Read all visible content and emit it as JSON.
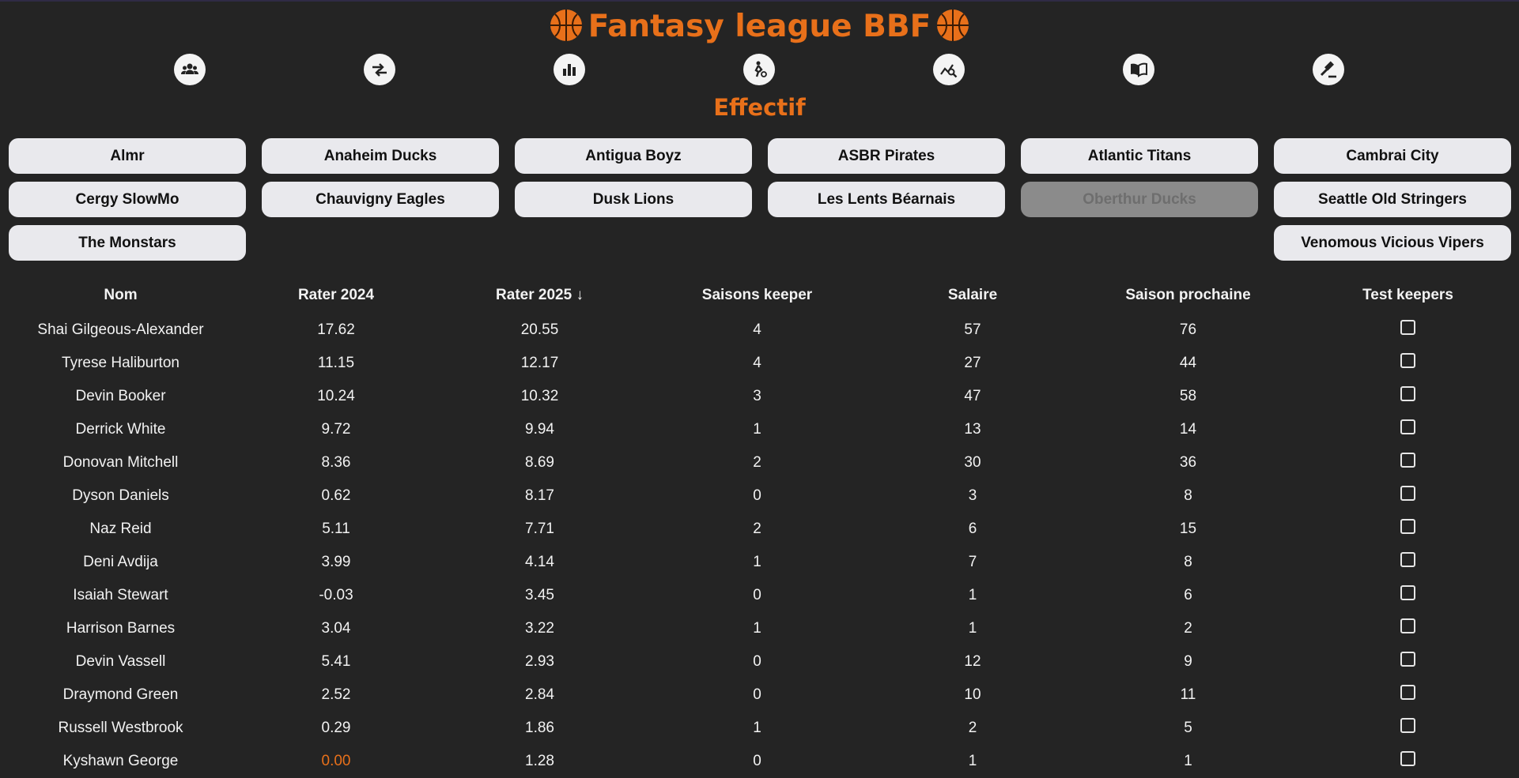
{
  "header": {
    "title": "Fantasy league BBF"
  },
  "nav": [
    {
      "icon": "users-group-icon"
    },
    {
      "icon": "trade-arrows-icon"
    },
    {
      "icon": "bar-chart-icon"
    },
    {
      "icon": "player-dribble-icon"
    },
    {
      "icon": "chart-search-icon"
    },
    {
      "icon": "book-open-icon"
    },
    {
      "icon": "gavel-icon"
    }
  ],
  "section_title": "Effectif",
  "teams": [
    "Almr",
    "Anaheim Ducks",
    "Antigua Boyz",
    "ASBR Pirates",
    "Atlantic Titans",
    "Cambrai City",
    "Cergy SlowMo",
    "Chauvigny Eagles",
    "Dusk Lions",
    "Les Lents Béarnais",
    "Oberthur Ducks",
    "Seattle Old Stringers",
    "The Monstars",
    "Venomous Vicious Vipers"
  ],
  "active_team": "Oberthur Ducks",
  "table": {
    "columns": [
      "Nom",
      "Rater 2024",
      "Rater 2025 ↓",
      "Saisons keeper",
      "Salaire",
      "Saison prochaine",
      "Test keepers"
    ],
    "rows": [
      [
        "Shai Gilgeous-Alexander",
        "17.62",
        "20.55",
        "4",
        "57",
        "76"
      ],
      [
        "Tyrese Haliburton",
        "11.15",
        "12.17",
        "4",
        "27",
        "44"
      ],
      [
        "Devin Booker",
        "10.24",
        "10.32",
        "3",
        "47",
        "58"
      ],
      [
        "Derrick White",
        "9.72",
        "9.94",
        "1",
        "13",
        "14"
      ],
      [
        "Donovan Mitchell",
        "8.36",
        "8.69",
        "2",
        "30",
        "36"
      ],
      [
        "Dyson Daniels",
        "0.62",
        "8.17",
        "0",
        "3",
        "8"
      ],
      [
        "Naz Reid",
        "5.11",
        "7.71",
        "2",
        "6",
        "15"
      ],
      [
        "Deni Avdija",
        "3.99",
        "4.14",
        "1",
        "7",
        "8"
      ],
      [
        "Isaiah Stewart",
        "-0.03",
        "3.45",
        "0",
        "1",
        "6"
      ],
      [
        "Harrison Barnes",
        "3.04",
        "3.22",
        "1",
        "1",
        "2"
      ],
      [
        "Devin Vassell",
        "5.41",
        "2.93",
        "0",
        "12",
        "9"
      ],
      [
        "Draymond Green",
        "2.52",
        "2.84",
        "0",
        "10",
        "11"
      ],
      [
        "Russell Westbrook",
        "0.29",
        "1.86",
        "1",
        "2",
        "5"
      ],
      [
        "Kyshawn George",
        "0.00",
        "1.28",
        "0",
        "1",
        "1"
      ]
    ]
  },
  "colors": {
    "accent": "#e8701a",
    "background": "#242424",
    "button": "#e9e9ed",
    "button_active": "#8b8b8b"
  }
}
